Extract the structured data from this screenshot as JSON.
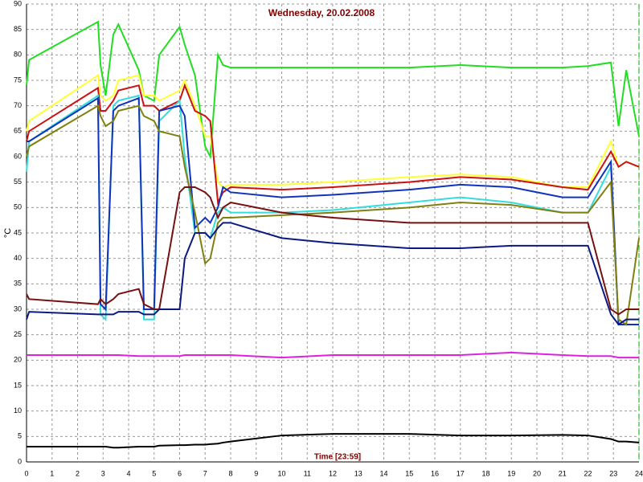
{
  "chart_data": {
    "type": "line",
    "title": "Wednesday, 20.02.2008",
    "x_label": "Time [23:59]",
    "y_label": "°C",
    "xlim": [
      0,
      24
    ],
    "xticks": [
      0,
      1,
      2,
      3,
      4,
      5,
      6,
      7,
      8,
      9,
      10,
      11,
      12,
      13,
      14,
      15,
      16,
      17,
      18,
      19,
      20,
      21,
      22,
      23,
      24
    ],
    "ylim": [
      0,
      90
    ],
    "yticks": [
      0,
      5,
      10,
      15,
      20,
      25,
      30,
      35,
      40,
      45,
      50,
      55,
      60,
      65,
      70,
      75,
      80,
      85,
      90
    ],
    "grid": true,
    "x": [
      0,
      0.1,
      2.8,
      2.9,
      3.1,
      3.4,
      3.6,
      4.4,
      4.6,
      5.0,
      5.2,
      6.0,
      6.2,
      6.6,
      7.0,
      7.2,
      7.5,
      7.7,
      8,
      10,
      12,
      15,
      17,
      19,
      21,
      22,
      22.9,
      23.2,
      23.5,
      24
    ],
    "series": [
      {
        "color": "#22dd22",
        "values": [
          74,
          79,
          86.5,
          78,
          72,
          84,
          86,
          77,
          72,
          71,
          80,
          85.5,
          82,
          76,
          62,
          60,
          80,
          78,
          77.5,
          77.5,
          77.5,
          77.5,
          78,
          77.5,
          77.5,
          77.8,
          78.5,
          66,
          77,
          64
        ]
      },
      {
        "color": "#ffff33",
        "values": [
          65,
          67,
          76,
          72,
          71,
          72,
          75,
          76,
          72,
          72,
          71,
          73,
          75,
          70,
          64,
          64,
          55,
          54,
          54.5,
          54.5,
          55,
          56,
          56.5,
          56,
          54,
          54,
          63,
          58,
          59,
          58
        ]
      },
      {
        "color": "#cc1111",
        "values": [
          63,
          65,
          73.5,
          69,
          69,
          71,
          73,
          74,
          70,
          70,
          69,
          71,
          74,
          69,
          68,
          67,
          51,
          53,
          54,
          53.5,
          54,
          55,
          56,
          55.5,
          54,
          53.5,
          61,
          58,
          59,
          58
        ]
      },
      {
        "color": "#33dddd",
        "values": [
          57,
          63,
          72,
          29,
          28,
          70,
          71,
          72,
          28,
          28,
          67,
          71,
          60,
          45,
          45,
          44,
          49,
          50,
          49,
          49,
          49.5,
          51,
          52,
          51,
          49,
          49,
          58,
          27,
          27,
          27
        ]
      },
      {
        "color": "#1133bb",
        "values": [
          63,
          63,
          71.5,
          31,
          30,
          69,
          70,
          71.5,
          30,
          30,
          69,
          70,
          68,
          46,
          48,
          47,
          50,
          54,
          53,
          52,
          52.5,
          53.5,
          54.5,
          54,
          52,
          52,
          59,
          27,
          27,
          27
        ]
      },
      {
        "color": "#808010",
        "values": [
          60,
          62,
          70,
          68,
          66,
          67,
          69,
          70,
          68,
          67,
          65,
          64,
          58,
          49,
          39,
          40,
          47,
          48,
          48,
          48.5,
          49,
          50,
          51,
          50.5,
          49,
          49,
          55,
          28,
          27,
          44
        ]
      },
      {
        "color": "#771111",
        "values": [
          33,
          32,
          31,
          32,
          31,
          32,
          33,
          34,
          31,
          30,
          30,
          53,
          54,
          54,
          53,
          52,
          48,
          50,
          51,
          49,
          48,
          47,
          47,
          47,
          47,
          47,
          30,
          29,
          30,
          30
        ]
      },
      {
        "color": "#0a1a80",
        "values": [
          28,
          29.5,
          29,
          29,
          29,
          29,
          29.5,
          29.5,
          29,
          29,
          30,
          30,
          40,
          45,
          45,
          44,
          46,
          47,
          47,
          44,
          43,
          42,
          42,
          42.5,
          42.5,
          42.5,
          29,
          27,
          28,
          28
        ]
      },
      {
        "color": "#dd22dd",
        "values": [
          21,
          21,
          21,
          21,
          21,
          21,
          21,
          20.8,
          20.8,
          20.8,
          20.8,
          20.8,
          21,
          21,
          21,
          21,
          21,
          21,
          21,
          20.5,
          21,
          21,
          21,
          21.5,
          21,
          20.8,
          20.8,
          20.5,
          20.5,
          20.5
        ]
      },
      {
        "color": "#000000",
        "values": [
          3,
          3,
          3,
          3,
          3,
          2.8,
          2.8,
          3,
          3,
          3,
          3.2,
          3.3,
          3.3,
          3.4,
          3.4,
          3.5,
          3.6,
          3.8,
          4,
          5.2,
          5.5,
          5.5,
          5.2,
          5.2,
          5.3,
          5.2,
          4.5,
          4,
          4,
          3.8
        ]
      }
    ]
  }
}
